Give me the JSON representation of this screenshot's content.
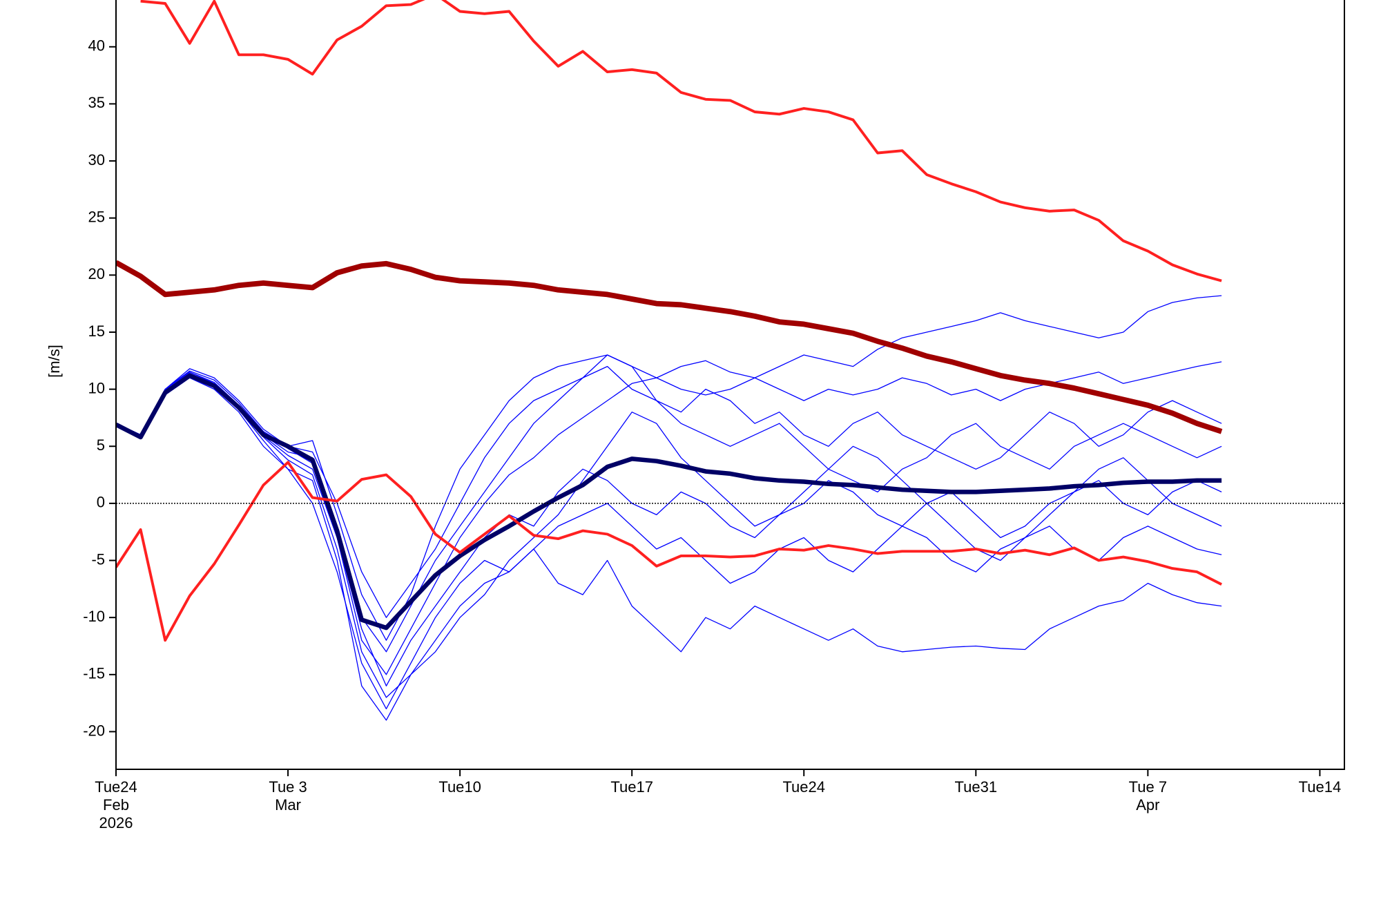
{
  "chart_data": {
    "type": "line",
    "y_label": "[m/s]",
    "x": [
      "2026-02-24",
      "2026-02-25",
      "2026-02-26",
      "2026-02-27",
      "2026-02-28",
      "2026-03-01",
      "2026-03-02",
      "2026-03-03",
      "2026-03-04",
      "2026-03-05",
      "2026-03-06",
      "2026-03-07",
      "2026-03-08",
      "2026-03-09",
      "2026-03-10",
      "2026-03-11",
      "2026-03-12",
      "2026-03-13",
      "2026-03-14",
      "2026-03-15",
      "2026-03-16",
      "2026-03-17",
      "2026-03-18",
      "2026-03-19",
      "2026-03-20",
      "2026-03-21",
      "2026-03-22",
      "2026-03-23",
      "2026-03-24",
      "2026-03-25",
      "2026-03-26",
      "2026-03-27",
      "2026-03-28",
      "2026-03-29",
      "2026-03-30",
      "2026-03-31",
      "2026-04-01",
      "2026-04-02",
      "2026-04-03",
      "2026-04-04",
      "2026-04-05",
      "2026-04-06",
      "2026-04-07",
      "2026-04-08",
      "2026-04-09",
      "2026-04-10"
    ],
    "xlim": [
      "2026-02-24",
      "2026-04-15"
    ],
    "xticks": [
      {
        "value": "2026-02-24",
        "label": [
          "Tue24",
          "Feb",
          "2026"
        ]
      },
      {
        "value": "2026-03-03",
        "label": [
          "Tue 3",
          "Mar"
        ]
      },
      {
        "value": "2026-03-10",
        "label": [
          "Tue10"
        ]
      },
      {
        "value": "2026-03-17",
        "label": [
          "Tue17"
        ]
      },
      {
        "value": "2026-03-24",
        "label": [
          "Tue24"
        ]
      },
      {
        "value": "2026-03-31",
        "label": [
          "Tue31"
        ]
      },
      {
        "value": "2026-04-07",
        "label": [
          "Tue 7",
          "Apr"
        ]
      },
      {
        "value": "2026-04-14",
        "label": [
          "Tue14"
        ]
      }
    ],
    "ylim": [
      -23.3,
      44.1
    ],
    "yticks": [
      -20,
      -15,
      -10,
      -5,
      0,
      5,
      10,
      15,
      20,
      25,
      30,
      35,
      40
    ],
    "zero_line": 0,
    "series": [
      {
        "color": "#0000ff",
        "width": 1,
        "values": [
          7,
          6,
          10,
          11.5,
          10.6,
          8.6,
          6.2,
          4.8,
          3.5,
          -3,
          -12,
          -15,
          -11,
          -7,
          -3,
          0,
          2.5,
          4,
          6,
          7.5,
          9,
          10.5,
          11,
          10,
          9.5,
          10,
          11,
          12,
          13,
          12.5,
          12,
          13.5,
          14.5,
          15,
          15.5,
          16,
          16.7,
          16,
          15.5,
          15,
          14.5,
          15,
          16.8,
          17.6,
          18,
          18.2
        ]
      },
      {
        "color": "#0000ff",
        "width": 1,
        "values": [
          7,
          6,
          9.8,
          11.2,
          10.2,
          8.2,
          5.5,
          3,
          0,
          -6,
          -14,
          -18,
          -14,
          -10,
          -7,
          -5,
          -6,
          -4,
          -7,
          -8,
          -5,
          -9,
          -11,
          -13,
          -10,
          -11,
          -9,
          -10,
          -11,
          -12,
          -11,
          -12.5,
          -13,
          -12.8,
          -12.6,
          -12.5,
          -12.7,
          -12.8,
          -11,
          -10,
          -9,
          -8.5,
          -7,
          -8,
          -8.7,
          -9
        ]
      },
      {
        "color": "#0000ff",
        "width": 1,
        "values": [
          7,
          6,
          10,
          11.8,
          11,
          9,
          6.5,
          5,
          5.5,
          -1,
          -8,
          -12,
          -8,
          -2,
          3,
          6,
          9,
          11,
          12,
          12.5,
          13,
          12,
          11,
          12,
          12.5,
          11.5,
          11,
          10,
          9,
          10,
          9.5,
          10,
          11,
          10.5,
          9.5,
          10,
          9,
          10,
          10.5,
          11,
          11.5,
          10.5,
          11,
          11.5,
          12,
          12.4
        ]
      },
      {
        "color": "#0000ff",
        "width": 1,
        "values": [
          7,
          6,
          9.5,
          11,
          10,
          8,
          5,
          3,
          2,
          -5,
          -16,
          -19,
          -15,
          -13,
          -10,
          -8,
          -5,
          -3,
          -1,
          2,
          5,
          8,
          7,
          4,
          2,
          0,
          -2,
          -1,
          1,
          3,
          5,
          4,
          2,
          0,
          -2,
          -4,
          -5,
          -3,
          -1,
          1,
          3,
          4,
          2,
          0,
          -1,
          -2
        ]
      },
      {
        "color": "#0000ff",
        "width": 1,
        "values": [
          7,
          6,
          10,
          11.5,
          10.5,
          8.5,
          6,
          4.5,
          4,
          -2,
          -10,
          -13,
          -9,
          -5,
          -2,
          1,
          4,
          7,
          9,
          11,
          12,
          10,
          9,
          7,
          6,
          5,
          6,
          7,
          5,
          3,
          2,
          1,
          3,
          4,
          6,
          7,
          5,
          4,
          3,
          5,
          6,
          7,
          6,
          5,
          4,
          5
        ]
      },
      {
        "color": "#0000ff",
        "width": 1,
        "values": [
          7,
          6,
          9.7,
          11.3,
          10.3,
          8.3,
          5.8,
          3.8,
          2.5,
          -4,
          -13,
          -17,
          -15,
          -12,
          -9,
          -7,
          -6,
          -4,
          -2,
          -1,
          0,
          -2,
          -4,
          -3,
          -5,
          -7,
          -6,
          -4,
          -3,
          -5,
          -6,
          -4,
          -2,
          -3,
          -5,
          -6,
          -4,
          -3,
          -2,
          -4,
          -5,
          -3,
          -2,
          -3,
          -4,
          -4.5
        ]
      },
      {
        "color": "#0000ff",
        "width": 1,
        "values": [
          7,
          6,
          10,
          11.6,
          10.8,
          8.8,
          6.3,
          5,
          4.5,
          0,
          -6,
          -10,
          -7,
          -4,
          0,
          4,
          7,
          9,
          10,
          11,
          13,
          12,
          9,
          8,
          10,
          9,
          7,
          8,
          6,
          5,
          7,
          8,
          6,
          5,
          4,
          3,
          4,
          6,
          8,
          7,
          5,
          6,
          8,
          9,
          8,
          7
        ]
      },
      {
        "color": "#0000ff",
        "width": 1,
        "values": [
          7,
          6,
          9.9,
          11.4,
          10.4,
          8.4,
          5.9,
          4.2,
          3,
          -3,
          -11,
          -16,
          -12,
          -9,
          -6,
          -3,
          -1,
          -2,
          1,
          3,
          2,
          0,
          -1,
          1,
          0,
          -2,
          -3,
          -1,
          0,
          2,
          1,
          -1,
          -2,
          0,
          1,
          -1,
          -3,
          -2,
          0,
          1,
          2,
          0,
          -1,
          1,
          2,
          1
        ]
      },
      {
        "color": "#000066",
        "width": 5,
        "values": [
          6.9,
          5.8,
          9.7,
          11.2,
          10.3,
          8.4,
          6.0,
          5.0,
          3.8,
          -2.4,
          -10.2,
          -10.9,
          -8.6,
          -6.3,
          -4.6,
          -3.2,
          -2.0,
          -0.7,
          0.5,
          1.6,
          3.2,
          3.9,
          3.7,
          3.3,
          2.8,
          2.6,
          2.2,
          2.0,
          1.9,
          1.7,
          1.6,
          1.4,
          1.2,
          1.1,
          1.0,
          1.0,
          1.1,
          1.2,
          1.3,
          1.5,
          1.6,
          1.8,
          1.9,
          1.9,
          2.0,
          2.0
        ]
      },
      {
        "color": "#ff2020",
        "width": 3,
        "values": [
          null,
          44.0,
          43.8,
          40.3,
          44.0,
          39.3,
          39.3,
          38.9,
          37.6,
          40.6,
          41.8,
          43.6,
          43.7,
          44.6,
          43.1,
          42.9,
          43.1,
          40.5,
          38.3,
          39.6,
          37.8,
          38.0,
          37.7,
          36.0,
          35.4,
          35.3,
          34.3,
          34.1,
          34.6,
          34.3,
          33.6,
          30.7,
          30.9,
          28.8,
          28.0,
          27.3,
          26.4,
          25.9,
          25.6,
          25.7,
          24.8,
          23.0,
          22.1,
          20.9,
          20.1,
          19.5
        ]
      },
      {
        "color": "#ff2020",
        "width": 3,
        "values": [
          -5.6,
          -2.3,
          -12.0,
          -8.1,
          -5.3,
          -1.9,
          1.6,
          3.6,
          0.5,
          0.2,
          2.1,
          2.5,
          0.6,
          -2.7,
          -4.3,
          -2.7,
          -1.1,
          -2.8,
          -3.1,
          -2.4,
          -2.7,
          -3.7,
          -5.5,
          -4.6,
          -4.6,
          -4.7,
          -4.6,
          -4.0,
          -4.1,
          -3.7,
          -4.0,
          -4.4,
          -4.2,
          -4.2,
          -4.2,
          -4.0,
          -4.4,
          -4.1,
          -4.5,
          -3.9,
          -5.0,
          -4.7,
          -5.1,
          -5.7,
          -6.0,
          -7.1
        ]
      },
      {
        "color": "#a00000",
        "width": 6,
        "values": [
          21.1,
          19.9,
          18.3,
          18.5,
          18.7,
          19.1,
          19.3,
          19.1,
          18.9,
          20.2,
          20.8,
          21.0,
          20.5,
          19.8,
          19.5,
          19.4,
          19.3,
          19.1,
          18.7,
          18.5,
          18.3,
          17.9,
          17.5,
          17.4,
          17.1,
          16.8,
          16.4,
          15.9,
          15.7,
          15.3,
          14.9,
          14.2,
          13.6,
          12.9,
          12.4,
          11.8,
          11.2,
          10.8,
          10.5,
          10.1,
          9.6,
          9.1,
          8.6,
          7.9,
          7.0,
          6.3
        ]
      }
    ]
  }
}
